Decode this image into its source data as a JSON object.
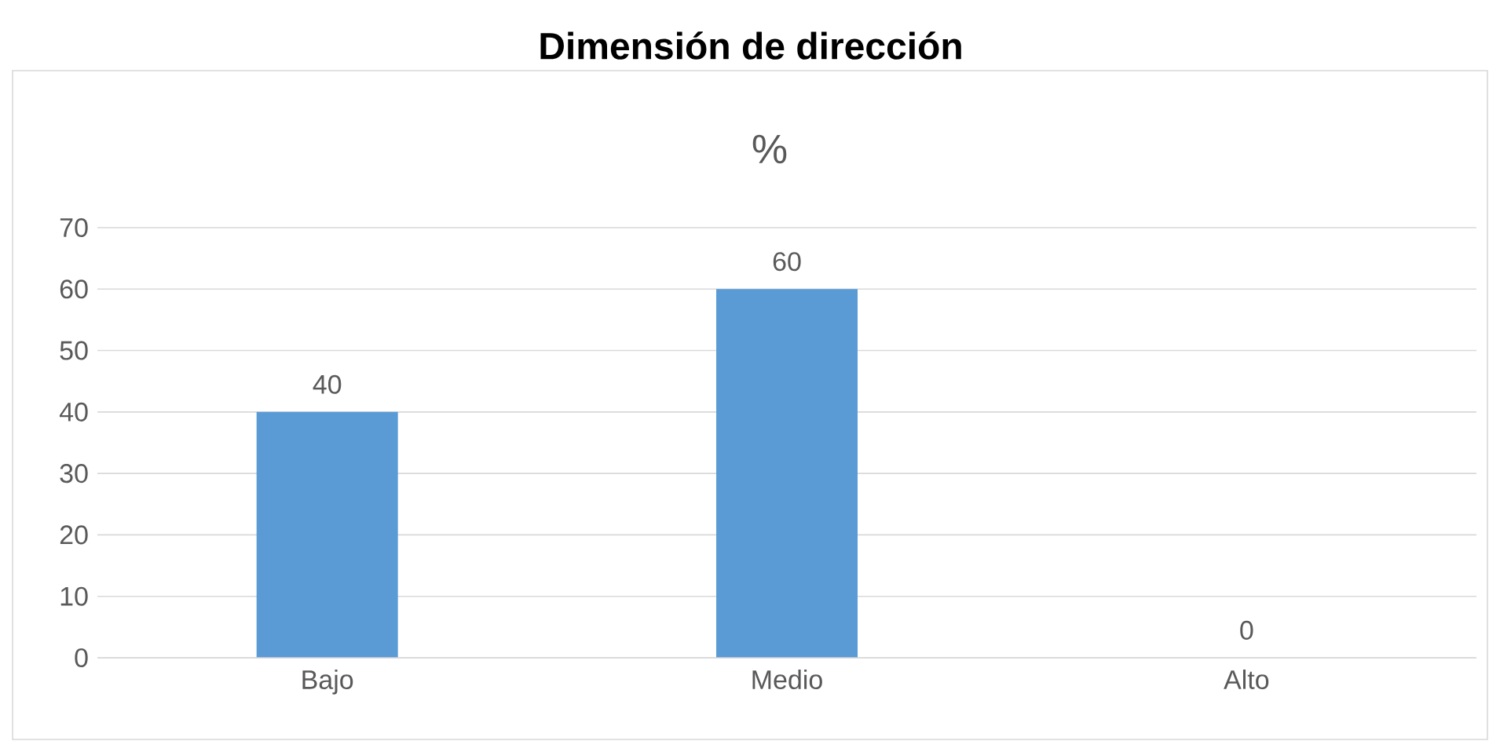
{
  "chart_data": {
    "type": "bar",
    "title": "Dimensión de dirección",
    "subtitle": "%",
    "categories": [
      "Bajo",
      "Medio",
      "Alto"
    ],
    "values": [
      40,
      60,
      0
    ],
    "color": "#5b9bd5",
    "ylim": [
      0,
      70
    ],
    "yticks": [
      0,
      10,
      20,
      30,
      40,
      50,
      60,
      70
    ],
    "grid": "y",
    "data_labels": true
  }
}
